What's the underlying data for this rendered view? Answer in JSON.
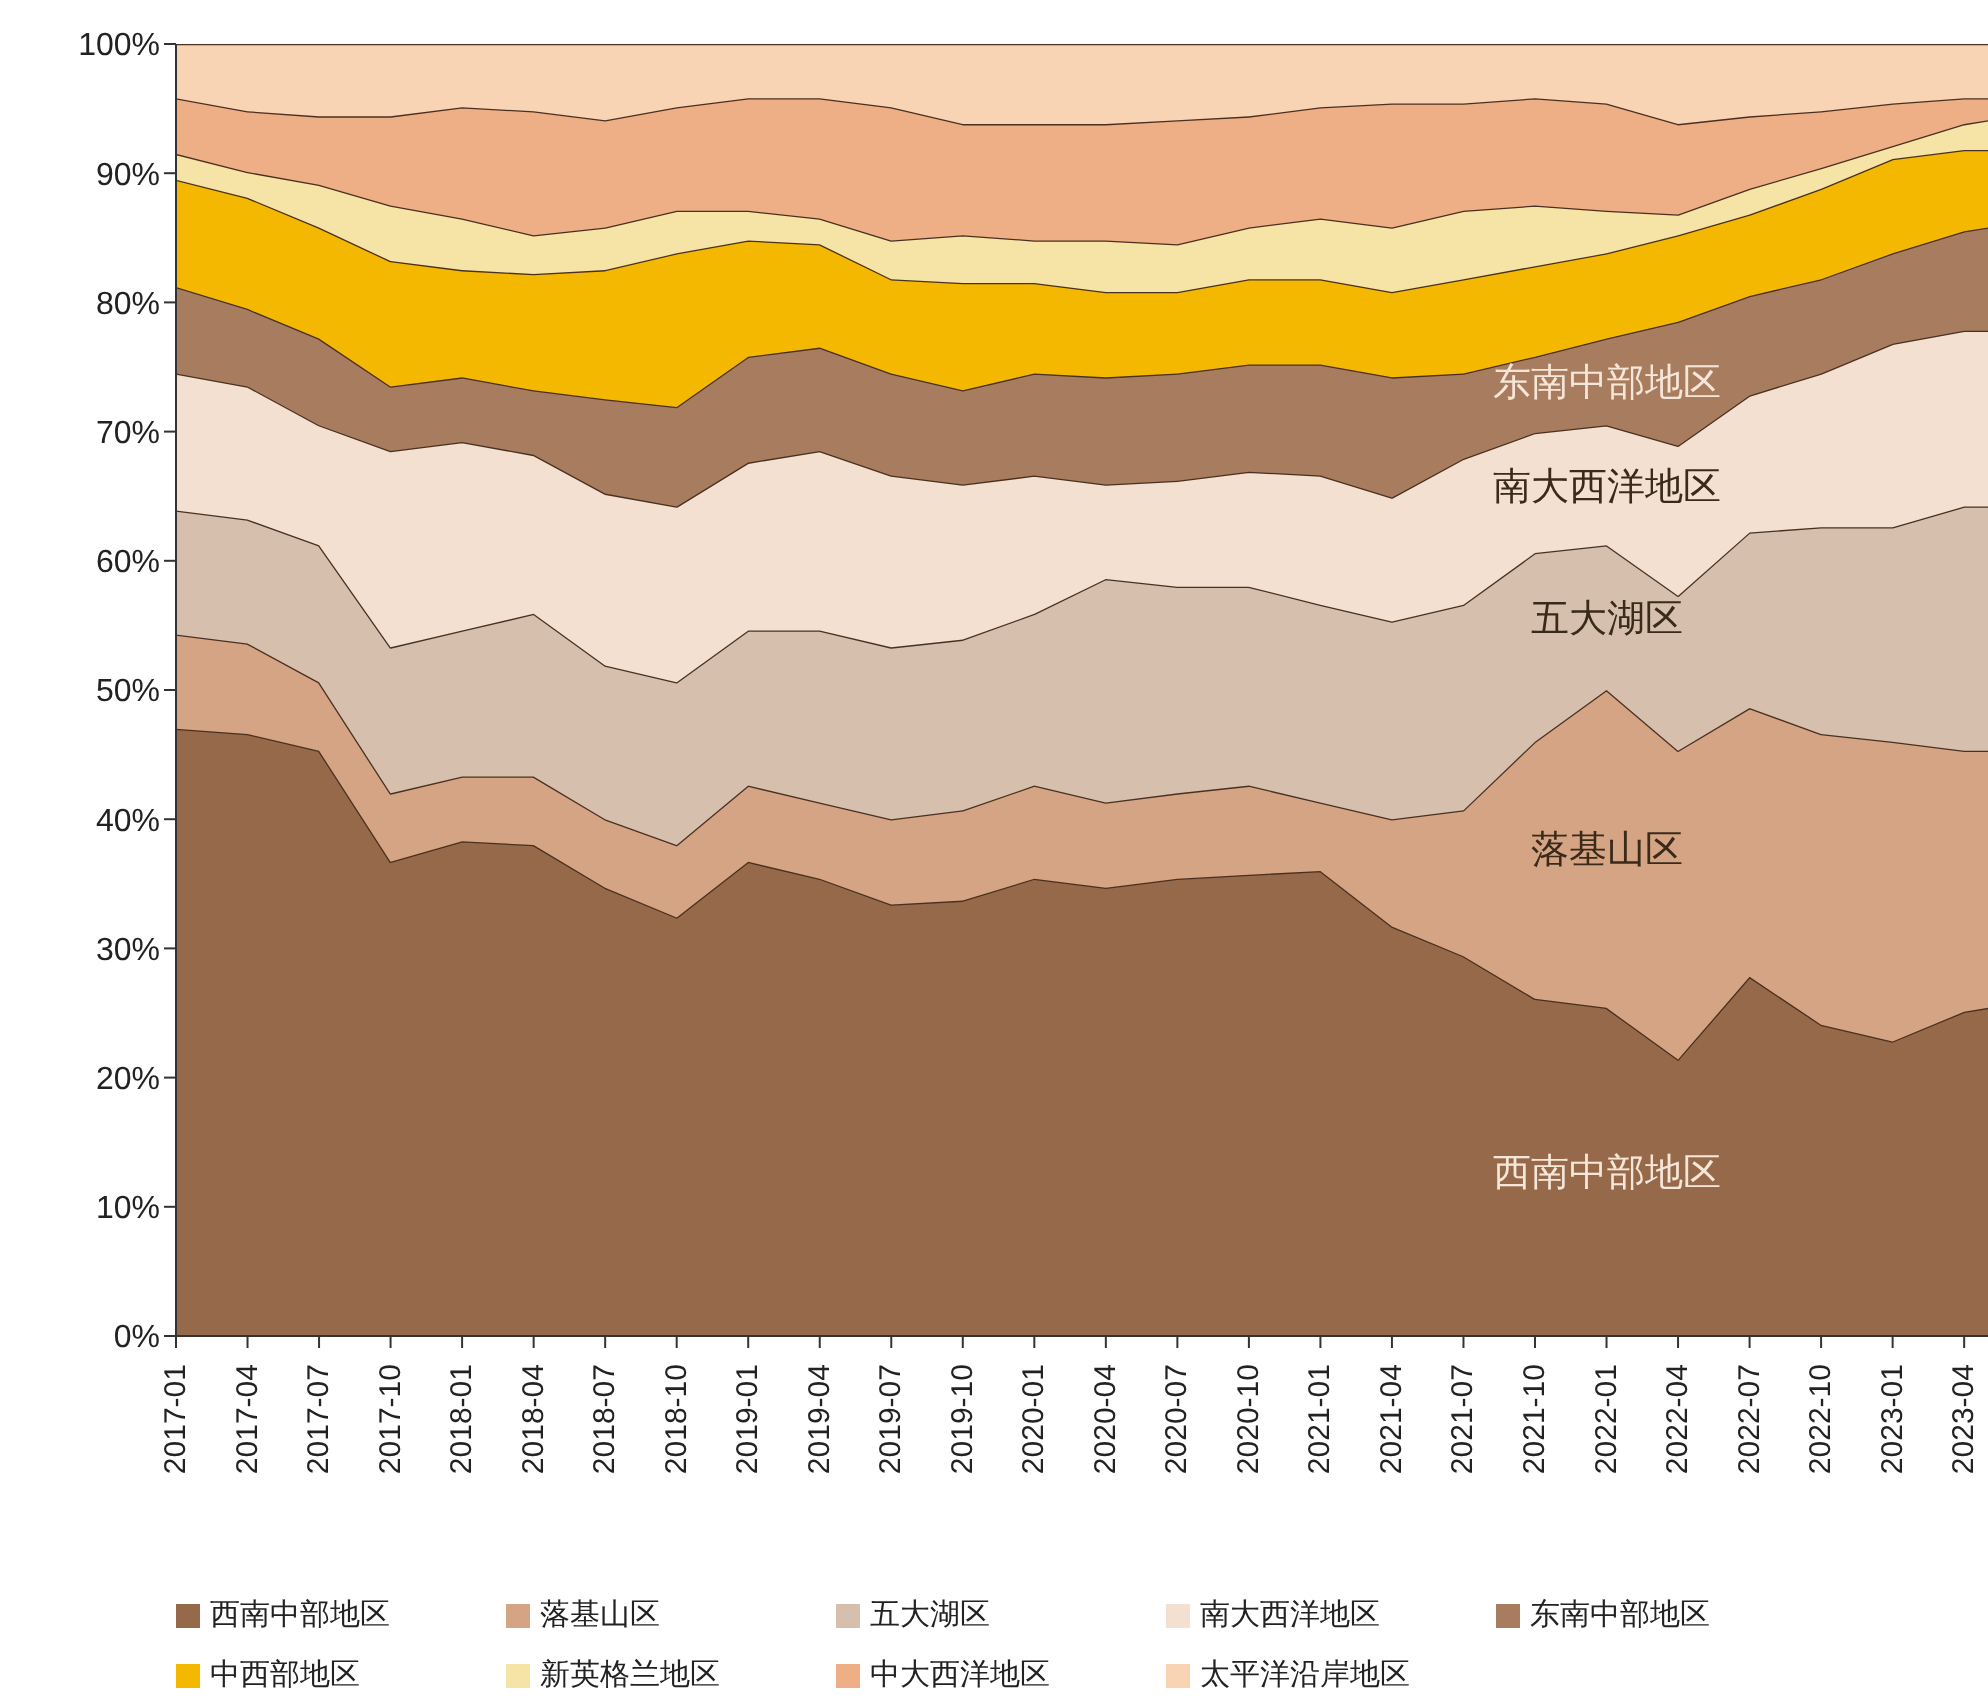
{
  "chart_data": {
    "type": "area",
    "stacked": true,
    "x": [
      "2017-01",
      "2017-04",
      "2017-07",
      "2017-10",
      "2018-01",
      "2018-04",
      "2018-07",
      "2018-10",
      "2019-01",
      "2019-04",
      "2019-07",
      "2019-10",
      "2020-01",
      "2020-04",
      "2020-07",
      "2020-10",
      "2021-01",
      "2021-04",
      "2021-07",
      "2021-10",
      "2022-01",
      "2022-04",
      "2022-07",
      "2022-10",
      "2023-01",
      "2023-04",
      "2023-05"
    ],
    "series": [
      {
        "name": "西南中部地区",
        "color": "#96694a",
        "values": [
          47.0,
          46.6,
          45.3,
          36.7,
          38.3,
          38.0,
          34.7,
          32.4,
          36.7,
          35.4,
          33.4,
          33.7,
          35.4,
          34.7,
          35.4,
          35.7,
          36.0,
          31.7,
          29.4,
          26.1,
          25.4,
          21.4,
          27.8,
          24.1,
          22.8,
          25.1,
          25.4
        ]
      },
      {
        "name": "落基山区",
        "color": "#d4a484",
        "values": [
          7.3,
          7.0,
          5.3,
          5.3,
          5.0,
          5.3,
          5.3,
          5.6,
          5.9,
          5.9,
          6.6,
          7.0,
          7.2,
          6.6,
          6.6,
          6.9,
          5.3,
          8.3,
          11.3,
          19.9,
          24.6,
          23.9,
          20.8,
          22.5,
          23.2,
          20.2,
          19.9
        ]
      },
      {
        "name": "五大湖区",
        "color": "#d6c0ad",
        "values": [
          9.6,
          9.6,
          10.6,
          11.3,
          11.3,
          12.6,
          11.9,
          12.6,
          12.0,
          13.3,
          13.3,
          13.2,
          13.3,
          17.3,
          16.0,
          15.4,
          15.3,
          15.3,
          15.9,
          14.6,
          11.2,
          12.0,
          13.6,
          16.0,
          16.6,
          18.9,
          18.9
        ]
      },
      {
        "name": "南大西洋地区",
        "color": "#f3e0d0",
        "values": [
          10.6,
          10.3,
          9.3,
          15.2,
          14.6,
          12.3,
          13.3,
          13.6,
          13.0,
          13.9,
          13.3,
          12.0,
          10.7,
          7.3,
          8.2,
          8.9,
          10.0,
          9.6,
          11.3,
          9.3,
          9.3,
          11.6,
          10.6,
          11.9,
          14.2,
          13.6,
          13.6
        ]
      },
      {
        "name": "东南中部地区",
        "color": "#a87c5e",
        "values": [
          6.7,
          6.0,
          6.7,
          5.0,
          5.0,
          5.0,
          7.3,
          7.7,
          8.2,
          8.0,
          7.9,
          7.3,
          7.9,
          8.3,
          8.3,
          8.3,
          8.6,
          9.3,
          6.6,
          5.9,
          6.7,
          9.6,
          7.7,
          7.3,
          7.0,
          7.7,
          8.0
        ]
      },
      {
        "name": "中西部地区",
        "color": "#f5b800",
        "values": [
          8.3,
          8.6,
          8.6,
          9.7,
          8.3,
          9.0,
          10.0,
          11.9,
          9.0,
          8.0,
          7.3,
          8.3,
          7.0,
          6.6,
          6.3,
          6.6,
          6.6,
          6.6,
          7.3,
          7.0,
          6.6,
          6.7,
          6.3,
          7.0,
          7.3,
          6.3,
          6.0
        ]
      },
      {
        "name": "新英格兰地区",
        "color": "#f6e3a6",
        "values": [
          2.0,
          2.0,
          3.3,
          4.3,
          4.0,
          3.0,
          3.3,
          3.3,
          2.3,
          2.0,
          3.0,
          3.7,
          3.3,
          4.0,
          3.7,
          4.0,
          4.7,
          5.0,
          5.3,
          4.7,
          3.3,
          1.6,
          2.0,
          1.6,
          1.0,
          2.0,
          2.3
        ]
      },
      {
        "name": "中大西洋地区",
        "color": "#eeae86",
        "values": [
          4.3,
          4.7,
          5.3,
          6.9,
          8.6,
          9.6,
          8.3,
          8.0,
          8.7,
          9.3,
          10.3,
          8.6,
          9.0,
          9.0,
          9.6,
          8.6,
          8.6,
          9.6,
          8.3,
          8.3,
          8.3,
          7.0,
          5.6,
          4.4,
          3.3,
          2.0,
          1.7
        ]
      },
      {
        "name": "太平洋沿岸地区",
        "color": "#f8d3b4",
        "values": [
          4.2,
          5.2,
          5.6,
          5.6,
          4.9,
          5.2,
          5.9,
          4.9,
          4.2,
          4.2,
          4.9,
          6.2,
          6.2,
          6.2,
          5.9,
          5.6,
          4.9,
          4.6,
          4.6,
          4.2,
          4.6,
          6.2,
          5.6,
          5.2,
          4.6,
          4.2,
          4.2
        ]
      }
    ],
    "xlim": [
      "2017-01",
      "2023-05"
    ],
    "xticks": [
      "2017-01",
      "2017-04",
      "2017-07",
      "2017-10",
      "2018-01",
      "2018-04",
      "2018-07",
      "2018-10",
      "2019-01",
      "2019-04",
      "2019-07",
      "2019-10",
      "2020-01",
      "2020-04",
      "2020-07",
      "2020-10",
      "2021-01",
      "2021-04",
      "2021-07",
      "2021-10",
      "2022-01",
      "2022-04",
      "2022-07",
      "2022-10",
      "2023-01",
      "2023-04"
    ],
    "ylim": [
      0,
      100
    ],
    "yticks": [
      {
        "value": 0,
        "label": "0%"
      },
      {
        "value": 10,
        "label": "10%"
      },
      {
        "value": 20,
        "label": "20%"
      },
      {
        "value": 30,
        "label": "30%"
      },
      {
        "value": 40,
        "label": "40%"
      },
      {
        "value": 50,
        "label": "50%"
      },
      {
        "value": 60,
        "label": "60%"
      },
      {
        "value": 70,
        "label": "70%"
      },
      {
        "value": 80,
        "label": "80%"
      },
      {
        "value": 90,
        "label": "90%"
      },
      {
        "value": 100,
        "label": "100%"
      }
    ],
    "annotations": [
      "西南中部地区",
      "落基山区",
      "五大湖区",
      "南大西洋地区",
      "东南中部地区"
    ],
    "grid": false,
    "legend": "bottom"
  }
}
